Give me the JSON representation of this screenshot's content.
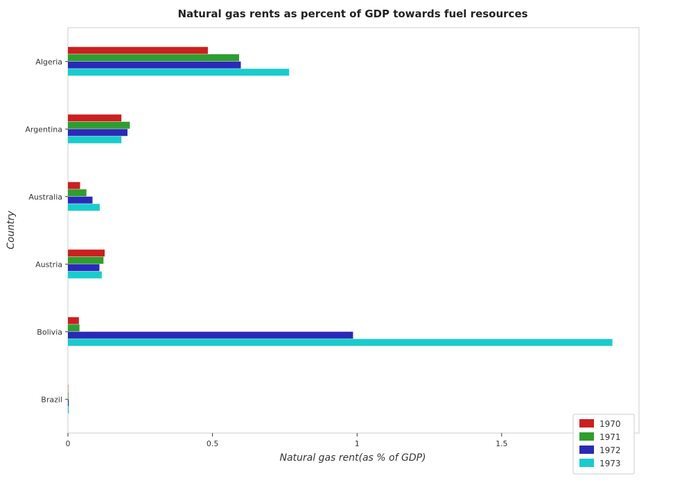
{
  "chart_data": {
    "type": "bar",
    "orientation": "horizontal",
    "title": "Natural gas rents as percent of GDP towards fuel resources",
    "xlabel": "Natural gas rent(as % of GDP)",
    "ylabel": "Country",
    "categories": [
      "Algeria",
      "Argentina",
      "Australia",
      "Austria",
      "Bolivia",
      "Brazil"
    ],
    "series": [
      {
        "name": "1970",
        "color": "#cc1f1f",
        "values": [
          0.484,
          0.185,
          0.042,
          0.127,
          0.038,
          0.001
        ]
      },
      {
        "name": "1971",
        "color": "#2e9e2e",
        "values": [
          0.592,
          0.214,
          0.064,
          0.123,
          0.04,
          0.002
        ]
      },
      {
        "name": "1972",
        "color": "#2a2ab8",
        "values": [
          0.598,
          0.206,
          0.085,
          0.109,
          0.986,
          0.003
        ]
      },
      {
        "name": "1973",
        "color": "#19cccc",
        "values": [
          0.765,
          0.185,
          0.11,
          0.117,
          1.883,
          0.003
        ]
      }
    ],
    "xlim": [
      0,
      1.975
    ],
    "xticks": [
      0,
      0.5,
      1,
      1.5
    ],
    "xtick_labels": [
      "0",
      "0.5",
      "1",
      "1.5"
    ],
    "legend_position": "bottom-right",
    "grid": false
  }
}
